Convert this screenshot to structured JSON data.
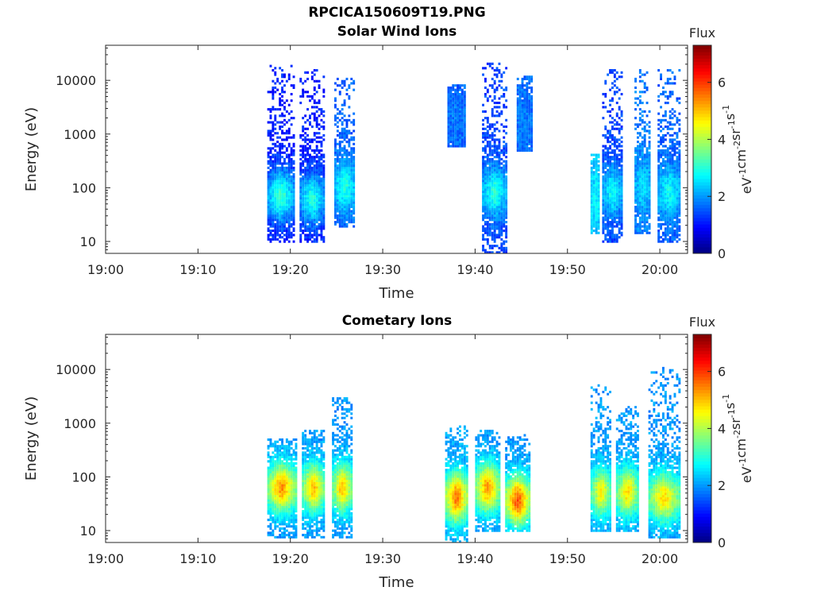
{
  "main_title": "RPCICA150609T19.PNG",
  "colors": {
    "axis": "#262626",
    "colormap": "jet"
  },
  "chart_data": [
    {
      "type": "heatmap",
      "title": "Solar Wind Ions",
      "xlabel": "Time",
      "ylabel": "Energy (eV)",
      "x_tick_labels": [
        "19:00",
        "19:10",
        "19:20",
        "19:30",
        "19:40",
        "19:50",
        "20:00"
      ],
      "xlim": [
        "19:00",
        "20:03"
      ],
      "y_scale": "log",
      "y_tick_labels": [
        "10",
        "100",
        "1000",
        "10000"
      ],
      "ylim": [
        6,
        45000
      ],
      "colorbar": {
        "title": "Flux",
        "label": "eV-1cm-2sr-1s-1",
        "ticks": [
          0,
          2,
          4,
          6
        ],
        "range": [
          0,
          7.3
        ]
      },
      "bursts": [
        {
          "start": "19:17:30",
          "end": "19:20:30",
          "e_min": 10,
          "e_max": 18000,
          "peak_energy": 70,
          "peak_flux": 3.2,
          "background_flux": 1.1
        },
        {
          "start": "19:21:00",
          "end": "19:23:45",
          "e_min": 10,
          "e_max": 15000,
          "peak_energy": 60,
          "peak_flux": 3.0,
          "background_flux": 1.1
        },
        {
          "start": "19:24:45",
          "end": "19:27:00",
          "e_min": 20,
          "e_max": 11000,
          "peak_energy": 100,
          "peak_flux": 3.0,
          "background_flux": 1.6
        },
        {
          "start": "19:37:00",
          "end": "19:39:00",
          "e_min": 600,
          "e_max": 8000,
          "peak_energy": 2000,
          "peak_flux": 1.8,
          "background_flux": 1.6
        },
        {
          "start": "19:40:45",
          "end": "19:43:30",
          "e_min": 6,
          "e_max": 20000,
          "peak_energy": 80,
          "peak_flux": 3.0,
          "background_flux": 1.4
        },
        {
          "start": "19:44:30",
          "end": "19:46:15",
          "e_min": 500,
          "e_max": 12000,
          "peak_energy": 1500,
          "peak_flux": 1.8,
          "background_flux": 1.7
        },
        {
          "start": "19:52:30",
          "end": "19:53:30",
          "e_min": 15,
          "e_max": 400,
          "peak_energy": 60,
          "peak_flux": 2.7,
          "background_flux": 2.3
        },
        {
          "start": "19:53:45",
          "end": "19:56:00",
          "e_min": 10,
          "e_max": 15000,
          "peak_energy": 80,
          "peak_flux": 2.8,
          "background_flux": 1.4
        },
        {
          "start": "19:57:15",
          "end": "19:59:00",
          "e_min": 15,
          "e_max": 15000,
          "peak_energy": 100,
          "peak_flux": 2.5,
          "background_flux": 1.8
        },
        {
          "start": "19:59:45",
          "end": "20:02:15",
          "e_min": 10,
          "e_max": 15000,
          "peak_energy": 80,
          "peak_flux": 2.8,
          "background_flux": 1.6
        }
      ]
    },
    {
      "type": "heatmap",
      "title": "Cometary Ions",
      "xlabel": "Time",
      "ylabel": "Energy (eV)",
      "x_tick_labels": [
        "19:00",
        "19:10",
        "19:20",
        "19:30",
        "19:40",
        "19:50",
        "20:00"
      ],
      "xlim": [
        "19:00",
        "20:03"
      ],
      "y_scale": "log",
      "y_tick_labels": [
        "10",
        "100",
        "1000",
        "10000"
      ],
      "ylim": [
        6,
        45000
      ],
      "colorbar": {
        "title": "Flux",
        "label": "eV-1cm-2sr-1s-1",
        "ticks": [
          0,
          2,
          4,
          6
        ],
        "range": [
          0,
          7.3
        ]
      },
      "bursts": [
        {
          "start": "19:17:30",
          "end": "19:20:45",
          "e_min": 8,
          "e_max": 500,
          "peak_energy": 60,
          "peak_flux": 5.3,
          "background_flux": 2.0
        },
        {
          "start": "19:21:15",
          "end": "19:23:45",
          "e_min": 8,
          "e_max": 700,
          "peak_energy": 60,
          "peak_flux": 5.0,
          "background_flux": 2.0
        },
        {
          "start": "19:24:30",
          "end": "19:26:45",
          "e_min": 8,
          "e_max": 3000,
          "peak_energy": 60,
          "peak_flux": 5.0,
          "background_flux": 2.0
        },
        {
          "start": "19:36:45",
          "end": "19:39:15",
          "e_min": 6,
          "e_max": 900,
          "peak_energy": 40,
          "peak_flux": 5.6,
          "background_flux": 2.1
        },
        {
          "start": "19:40:00",
          "end": "19:42:45",
          "e_min": 10,
          "e_max": 700,
          "peak_energy": 60,
          "peak_flux": 5.3,
          "background_flux": 2.0
        },
        {
          "start": "19:43:15",
          "end": "19:46:00",
          "e_min": 10,
          "e_max": 600,
          "peak_energy": 35,
          "peak_flux": 5.8,
          "background_flux": 2.0
        },
        {
          "start": "19:52:30",
          "end": "19:54:45",
          "e_min": 10,
          "e_max": 5000,
          "peak_energy": 50,
          "peak_flux": 4.6,
          "background_flux": 2.0
        },
        {
          "start": "19:55:15",
          "end": "19:57:45",
          "e_min": 10,
          "e_max": 2000,
          "peak_energy": 50,
          "peak_flux": 4.8,
          "background_flux": 2.0
        },
        {
          "start": "19:58:45",
          "end": "20:02:15",
          "e_min": 8,
          "e_max": 11000,
          "peak_energy": 40,
          "peak_flux": 4.8,
          "background_flux": 2.0
        }
      ]
    }
  ]
}
